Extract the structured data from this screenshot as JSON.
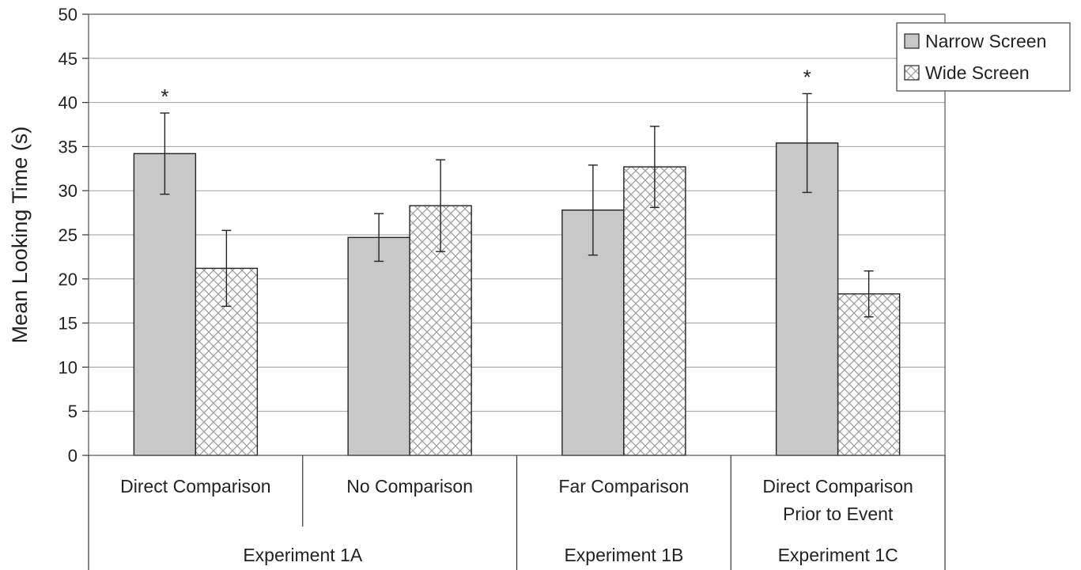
{
  "chart_data": {
    "type": "bar",
    "ylabel": "Mean Looking Time (s)",
    "ylim": [
      0,
      50
    ],
    "ytick_step": 5,
    "grid": true,
    "legend_position": "top-right",
    "categories": [
      {
        "label_lines": [
          "Direct Comparison"
        ],
        "group": "Experiment 1A"
      },
      {
        "label_lines": [
          "No Comparison"
        ],
        "group": "Experiment 1A"
      },
      {
        "label_lines": [
          "Far Comparison"
        ],
        "group": "Experiment 1B"
      },
      {
        "label_lines": [
          "Direct Comparison",
          "Prior to Event"
        ],
        "group": "Experiment 1C"
      }
    ],
    "groups": [
      "Experiment 1A",
      "Experiment 1B",
      "Experiment 1C"
    ],
    "series": [
      {
        "name": "Narrow Screen",
        "fill": "#c8c8c8",
        "pattern": "solid",
        "values": [
          34.2,
          24.7,
          27.8,
          35.4
        ],
        "error": [
          4.6,
          2.7,
          5.1,
          5.6
        ]
      },
      {
        "name": "Wide Screen",
        "fill": "#ffffff",
        "pattern": "crosshatch",
        "values": [
          21.2,
          28.3,
          32.7,
          18.3
        ],
        "error": [
          4.3,
          5.2,
          4.6,
          2.6
        ]
      }
    ],
    "annotations": [
      {
        "text": "*",
        "category_index": 0,
        "series_index": 0
      },
      {
        "text": "*",
        "category_index": 3,
        "series_index": 0
      }
    ]
  }
}
